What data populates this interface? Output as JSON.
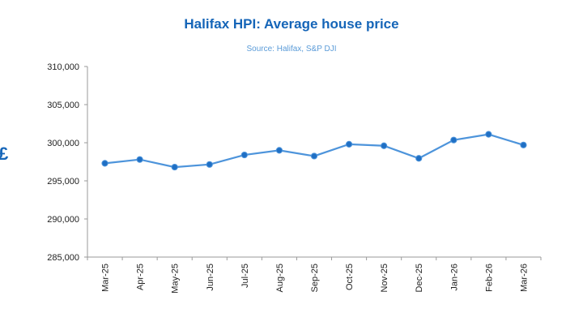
{
  "chart_data": {
    "type": "line",
    "title": "Halifax HPI: Average house price",
    "subtitle": "Source: Halifax, S&P DJI",
    "ylabel": "£",
    "xlabel": "",
    "categories": [
      "Mar-25",
      "Apr-25",
      "May-25",
      "Jun-25",
      "Jul-25",
      "Aug-25",
      "Sep-25",
      "Oct-25",
      "Nov-25",
      "Dec-25",
      "Jan-26",
      "Feb-26",
      "Mar-26"
    ],
    "series": [
      {
        "values": [
          297300,
          297800,
          296800,
          297150,
          298400,
          299000,
          298250,
          299800,
          299600,
          297950,
          300350,
          301100,
          299700
        ]
      }
    ],
    "ylim": [
      285000,
      310000
    ],
    "yticks": [
      "285,000",
      "290,000",
      "295,000",
      "300,000",
      "305,000",
      "310,000"
    ],
    "ytick_values": [
      285000,
      290000,
      295000,
      300000,
      305000,
      310000
    ],
    "grid": false,
    "legend": "none",
    "colors": {
      "line": "#4d94db",
      "marker": "#1f6fc4",
      "title": "#1565b8",
      "subtitle": "#5a9bd8"
    }
  }
}
